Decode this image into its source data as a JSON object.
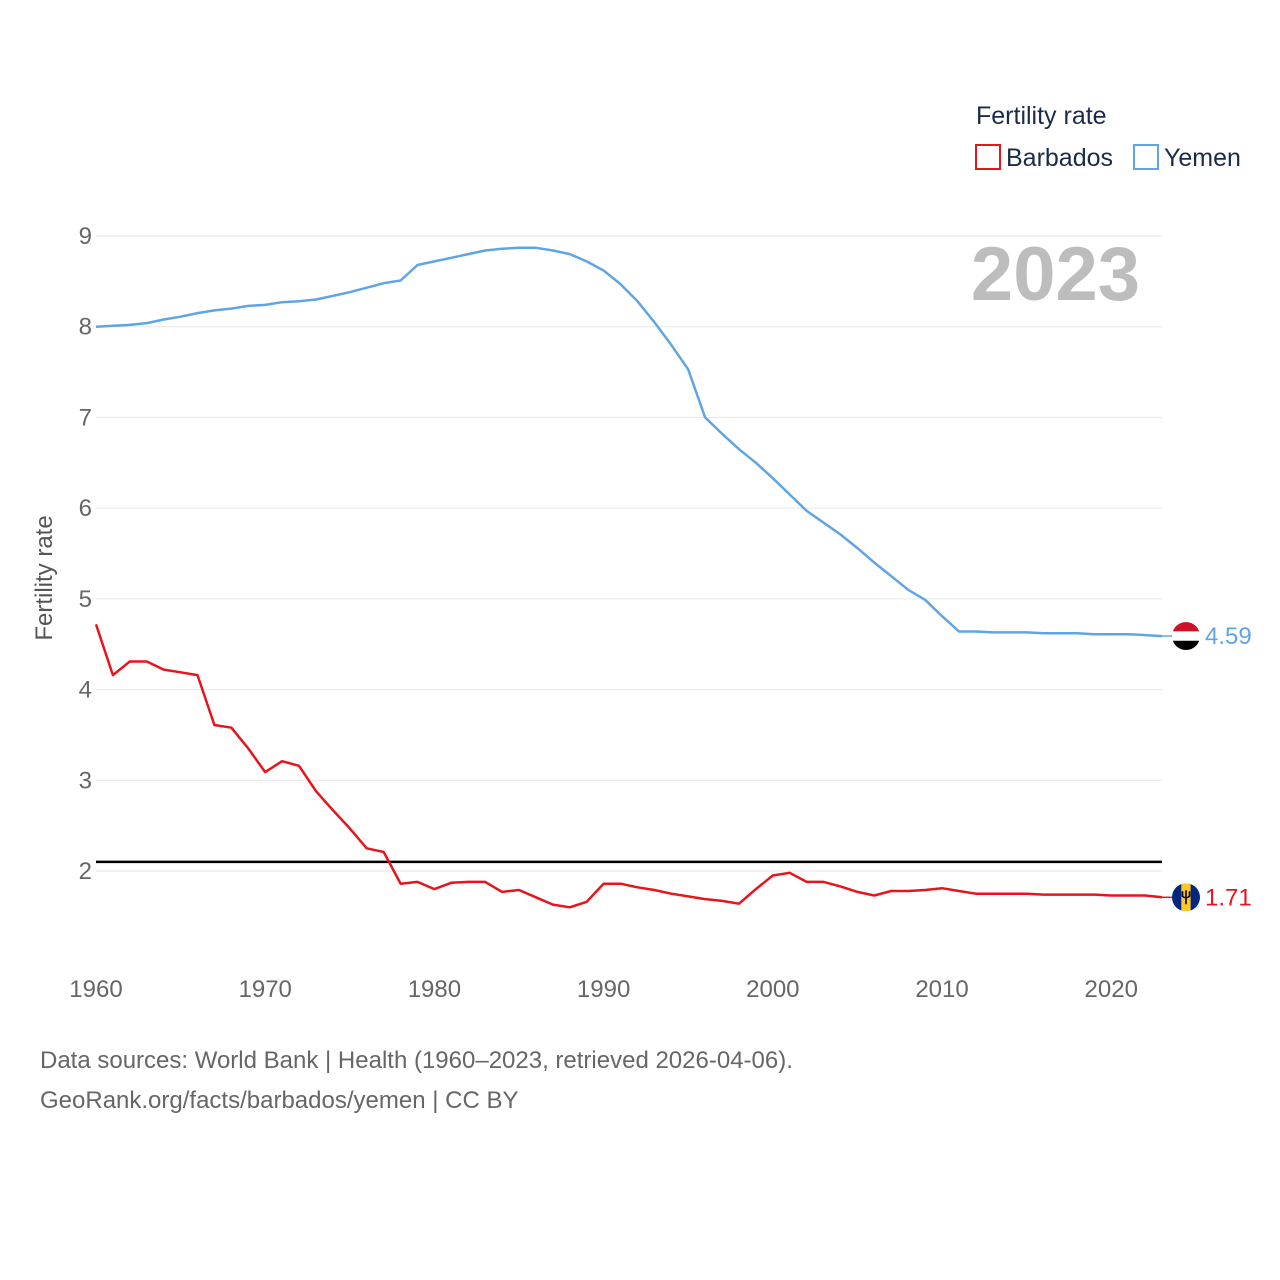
{
  "colors": {
    "barbados": "#e8141c",
    "yemen": "#5fa5e6",
    "reference": "#000000",
    "grid": "#e6e6e6",
    "watermark": "#bdbdbd"
  },
  "legend": {
    "title": "Fertility rate",
    "items": [
      {
        "label": "Barbados",
        "color": "#e8141c"
      },
      {
        "label": "Yemen",
        "color": "#5fa5e6"
      }
    ]
  },
  "year_watermark": "2023",
  "end_labels": {
    "yemen": "4.59",
    "barbados": "1.71"
  },
  "flags": {
    "yemen": "yemen-flag-icon",
    "barbados": "barbados-flag-icon"
  },
  "source": {
    "line1": "Data sources: World Bank | Health (1960–2023, retrieved 2026-04-06).",
    "line2": "GeoRank.org/facts/barbados/yemen | CC BY"
  },
  "chart_data": {
    "type": "line",
    "title": "Fertility rate",
    "xlabel": "",
    "ylabel": "Fertility rate",
    "xlim": [
      1960,
      2023
    ],
    "ylim": [
      1.1,
      9.5
    ],
    "x_ticks": [
      1960,
      1970,
      1980,
      1990,
      2000,
      2010,
      2020
    ],
    "y_ticks": [
      2,
      3,
      4,
      5,
      6,
      7,
      8,
      9
    ],
    "grid": true,
    "legend_position": "top-right",
    "reference_line": {
      "y": 2.1
    },
    "x": [
      1960,
      1961,
      1962,
      1963,
      1964,
      1965,
      1966,
      1967,
      1968,
      1969,
      1970,
      1971,
      1972,
      1973,
      1974,
      1975,
      1976,
      1977,
      1978,
      1979,
      1980,
      1981,
      1982,
      1983,
      1984,
      1985,
      1986,
      1987,
      1988,
      1989,
      1990,
      1991,
      1992,
      1993,
      1994,
      1995,
      1996,
      1997,
      1998,
      1999,
      2000,
      2001,
      2002,
      2003,
      2004,
      2005,
      2006,
      2007,
      2008,
      2009,
      2010,
      2011,
      2012,
      2013,
      2014,
      2015,
      2016,
      2017,
      2018,
      2019,
      2020,
      2021,
      2022,
      2023
    ],
    "series": [
      {
        "name": "Barbados",
        "values": [
          4.72,
          4.16,
          4.31,
          4.31,
          4.22,
          4.19,
          4.16,
          3.61,
          3.58,
          3.35,
          3.09,
          3.21,
          3.16,
          2.88,
          2.67,
          2.47,
          2.25,
          2.21,
          1.86,
          1.88,
          1.8,
          1.87,
          1.88,
          1.88,
          1.77,
          1.79,
          1.71,
          1.63,
          1.6,
          1.66,
          1.86,
          1.86,
          1.82,
          1.79,
          1.75,
          1.72,
          1.69,
          1.67,
          1.64,
          1.8,
          1.95,
          1.98,
          1.88,
          1.88,
          1.83,
          1.77,
          1.73,
          1.78,
          1.78,
          1.79,
          1.81,
          1.78,
          1.75,
          1.75,
          1.75,
          1.75,
          1.74,
          1.74,
          1.74,
          1.74,
          1.73,
          1.73,
          1.73,
          1.71
        ]
      },
      {
        "name": "Yemen",
        "values": [
          8.0,
          8.01,
          8.02,
          8.04,
          8.08,
          8.11,
          8.15,
          8.18,
          8.2,
          8.23,
          8.24,
          8.27,
          8.28,
          8.3,
          8.34,
          8.38,
          8.43,
          8.48,
          8.51,
          8.68,
          8.72,
          8.76,
          8.8,
          8.84,
          8.86,
          8.87,
          8.87,
          8.84,
          8.8,
          8.72,
          8.62,
          8.47,
          8.28,
          8.05,
          7.8,
          7.53,
          7.0,
          6.82,
          6.65,
          6.5,
          6.33,
          6.15,
          5.97,
          5.84,
          5.71,
          5.56,
          5.4,
          5.25,
          5.1,
          4.99,
          4.81,
          4.64,
          4.64,
          4.63,
          4.63,
          4.63,
          4.62,
          4.62,
          4.62,
          4.61,
          4.61,
          4.61,
          4.6,
          4.59
        ]
      }
    ]
  }
}
